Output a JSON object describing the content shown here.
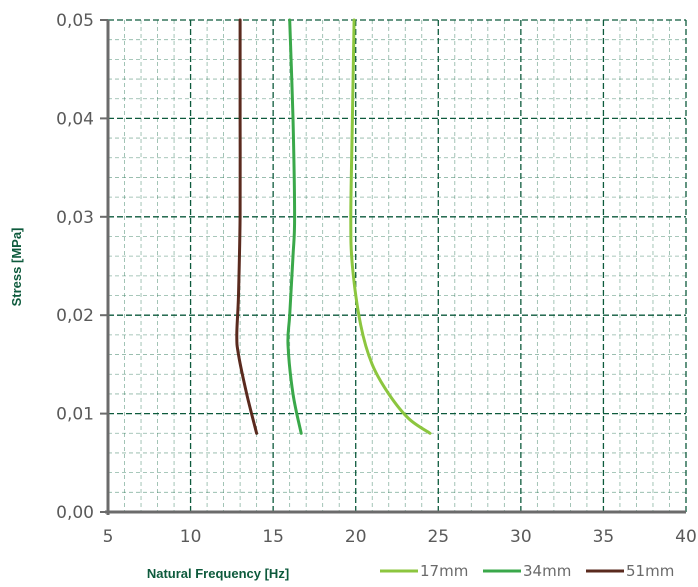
{
  "chart_data": {
    "type": "line",
    "title": "",
    "xlabel": "Natural Frequency [Hz]",
    "ylabel": "Stress [MPa]",
    "xlim": [
      5,
      40
    ],
    "ylim": [
      0,
      0.05
    ],
    "x_ticks": [
      5,
      10,
      15,
      20,
      25,
      30,
      35,
      40
    ],
    "y_ticks": [
      0.0,
      0.01,
      0.02,
      0.03,
      0.04,
      0.05
    ],
    "x_tick_labels": [
      "5",
      "10",
      "15",
      "20",
      "25",
      "30",
      "35",
      "40"
    ],
    "y_tick_labels": [
      "0,00",
      "0,01",
      "0,02",
      "0,03",
      "0,04",
      "0,05"
    ],
    "grid": true,
    "legend_position": "bottom-right",
    "series": [
      {
        "name": "17mm",
        "color": "#8cc63f",
        "points": [
          [
            24.5,
            0.008
          ],
          [
            23.2,
            0.0095
          ],
          [
            22.0,
            0.012
          ],
          [
            21.0,
            0.015
          ],
          [
            20.3,
            0.019
          ],
          [
            19.8,
            0.025
          ],
          [
            19.7,
            0.03
          ],
          [
            19.8,
            0.04
          ],
          [
            19.9,
            0.05
          ]
        ]
      },
      {
        "name": "34mm",
        "color": "#3aa84a",
        "points": [
          [
            16.7,
            0.008
          ],
          [
            16.2,
            0.012
          ],
          [
            15.9,
            0.017
          ],
          [
            16.0,
            0.02
          ],
          [
            16.2,
            0.026
          ],
          [
            16.3,
            0.03
          ],
          [
            16.2,
            0.04
          ],
          [
            16.0,
            0.05
          ]
        ]
      },
      {
        "name": "51mm",
        "color": "#5a2a1e",
        "points": [
          [
            14.0,
            0.008
          ],
          [
            13.4,
            0.012
          ],
          [
            12.9,
            0.016
          ],
          [
            12.8,
            0.018
          ],
          [
            12.9,
            0.022
          ],
          [
            13.0,
            0.03
          ],
          [
            13.0,
            0.04
          ],
          [
            13.0,
            0.05
          ]
        ]
      }
    ]
  }
}
